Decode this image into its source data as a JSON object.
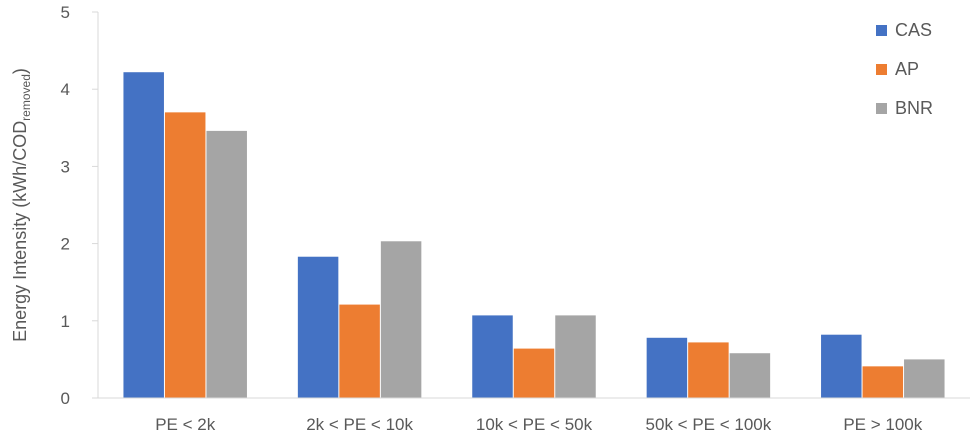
{
  "chart_data": {
    "type": "bar",
    "title": "",
    "xlabel": "",
    "ylabel": "Energy Intensity (kWh/COD",
    "ylabel_subscript": "removed",
    "ylabel_suffix": ")",
    "ylim": [
      0,
      5
    ],
    "yticks": [
      "0",
      "1",
      "2",
      "3",
      "4",
      "5"
    ],
    "grid": false,
    "legend_position": "top-right",
    "categories": [
      "PE < 2k",
      "2k < PE < 10k",
      "10k < PE < 50k",
      "50k < PE < 100k",
      "PE > 100k"
    ],
    "series": [
      {
        "name": "CAS",
        "color": "#4472C4",
        "values": [
          4.22,
          1.83,
          1.07,
          0.78,
          0.82
        ]
      },
      {
        "name": "AP",
        "color": "#ED7D31",
        "values": [
          3.7,
          1.21,
          0.64,
          0.72,
          0.41
        ]
      },
      {
        "name": "BNR",
        "color": "#A5A5A5",
        "values": [
          3.46,
          2.03,
          1.07,
          0.58,
          0.5
        ]
      }
    ]
  }
}
